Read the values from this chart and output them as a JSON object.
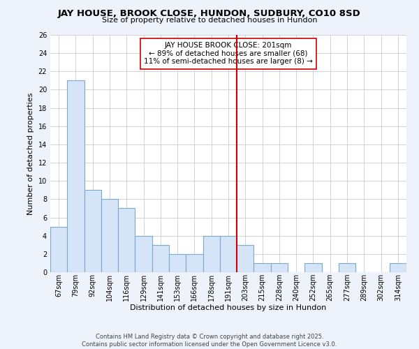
{
  "title": "JAY HOUSE, BROOK CLOSE, HUNDON, SUDBURY, CO10 8SD",
  "subtitle": "Size of property relative to detached houses in Hundon",
  "xlabel": "Distribution of detached houses by size in Hundon",
  "ylabel": "Number of detached properties",
  "categories": [
    "67sqm",
    "79sqm",
    "92sqm",
    "104sqm",
    "116sqm",
    "129sqm",
    "141sqm",
    "153sqm",
    "166sqm",
    "178sqm",
    "191sqm",
    "203sqm",
    "215sqm",
    "228sqm",
    "240sqm",
    "252sqm",
    "265sqm",
    "277sqm",
    "289sqm",
    "302sqm",
    "314sqm"
  ],
  "values": [
    5,
    21,
    9,
    8,
    7,
    4,
    3,
    2,
    2,
    4,
    4,
    3,
    1,
    1,
    0,
    1,
    0,
    1,
    0,
    0,
    1
  ],
  "bar_color": "#d6e4f7",
  "bar_edge_color": "#7aaad0",
  "vline_color": "#cc0000",
  "vline_index": 11,
  "annotation_title": "JAY HOUSE BROOK CLOSE: 201sqm",
  "annotation_line1": "← 89% of detached houses are smaller (68)",
  "annotation_line2": "11% of semi-detached houses are larger (8) →",
  "annotation_box_facecolor": "white",
  "annotation_box_edgecolor": "#cc0000",
  "ylim": [
    0,
    26
  ],
  "yticks": [
    0,
    2,
    4,
    6,
    8,
    10,
    12,
    14,
    16,
    18,
    20,
    22,
    24,
    26
  ],
  "footer_line1": "Contains HM Land Registry data © Crown copyright and database right 2025.",
  "footer_line2": "Contains public sector information licensed under the Open Government Licence v3.0.",
  "fig_facecolor": "#eef2fb",
  "plot_facecolor": "#ffffff",
  "grid_color": "#cccccc",
  "title_fontsize": 9.5,
  "subtitle_fontsize": 8,
  "axis_label_fontsize": 8,
  "tick_fontsize": 7,
  "annotation_fontsize": 7.5,
  "footer_fontsize": 6
}
